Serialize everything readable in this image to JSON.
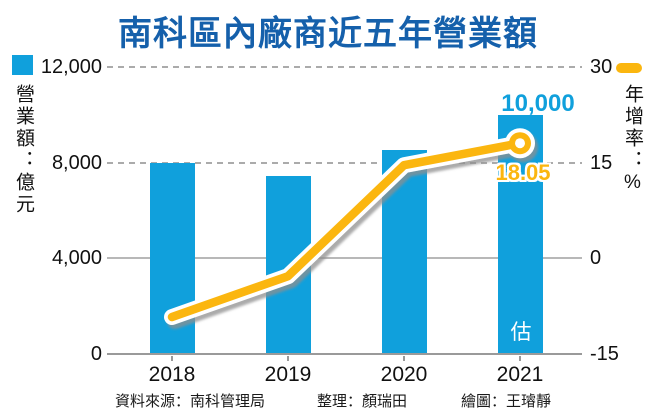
{
  "title": "南科區內廠商近五年營業額",
  "footer": {
    "source": "資料來源：南科管理局",
    "editor": "整理：顏瑞田",
    "illustrator": "繪圖：王璿靜"
  },
  "colors": {
    "title": "#1560ab",
    "bar": "#10a0dc",
    "line": "#fbb60f",
    "grid": "#ababab",
    "axis": "#9a9a9a",
    "text": "#111111"
  },
  "chart_data": {
    "type": "bar+line",
    "title": "南科區內廠商近五年營業額",
    "categories": [
      "2018",
      "2019",
      "2020",
      "2021"
    ],
    "series": [
      {
        "name": "營業額",
        "unit": "億元",
        "type": "bar",
        "axis": "left",
        "values": [
          8000,
          7450,
          8550,
          10000
        ]
      },
      {
        "name": "年增率",
        "unit": "%",
        "type": "line",
        "axis": "right",
        "values": [
          -9.2,
          -2.8,
          14.6,
          18.05
        ]
      }
    ],
    "left_axis": {
      "label": "營業額：億元",
      "tick_labels": [
        "12,000",
        "8,000",
        "4,000",
        "0"
      ],
      "tick_values": [
        12000,
        8000,
        4000,
        0
      ],
      "range": [
        0,
        12000
      ]
    },
    "right_axis": {
      "label": "年增率：%",
      "tick_labels": [
        "30",
        "15",
        "0",
        "-15"
      ],
      "tick_values": [
        30,
        15,
        0,
        -15
      ],
      "range": [
        -15,
        30
      ]
    },
    "annotations": {
      "bar_peak_label": "10,000",
      "line_end_label": "18.05",
      "estimate_label": "估"
    },
    "legend": [
      {
        "name": "營業額：億元",
        "swatch": "square",
        "color": "#10a0dc"
      },
      {
        "name": "年增率：%",
        "swatch": "pill",
        "color": "#fbb60f"
      }
    ],
    "grid": "horizontal, top two dashed, zero-lines solid",
    "legend_position": "beside axes"
  }
}
